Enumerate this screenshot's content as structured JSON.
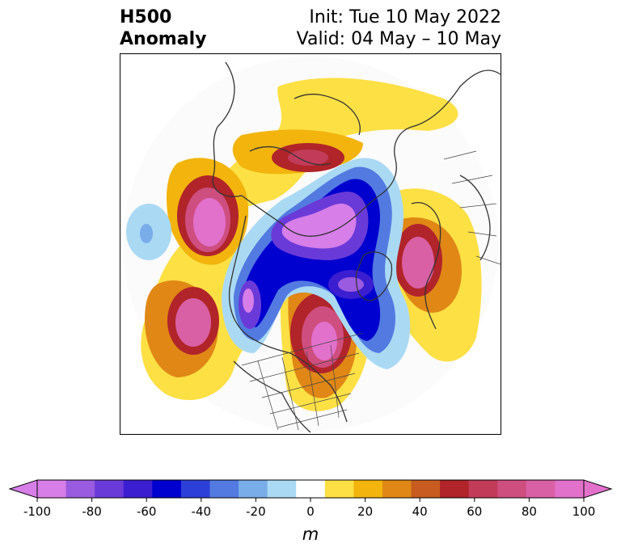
{
  "title": {
    "left_line1": "H500",
    "left_line2": "Anomaly",
    "right_line1": "Init: Tue 10 May 2022",
    "right_line2": "Valid: 04 May – 10 May"
  },
  "map": {
    "projection": "north-polar-stereographic",
    "field": "500 hPa geopotential height anomaly",
    "anomaly_centers": [
      {
        "sign": "positive",
        "region": "North Pacific / Bering Sea",
        "peak": 100
      },
      {
        "sign": "positive",
        "region": "Northeast Pacific",
        "peak": 90
      },
      {
        "sign": "positive",
        "region": "Eastern North America",
        "peak": 90
      },
      {
        "sign": "positive",
        "region": "Northern Europe / Scandinavia",
        "peak": 90
      },
      {
        "sign": "positive",
        "region": "East Siberia",
        "peak": 70
      },
      {
        "sign": "negative",
        "region": "Arctic Ocean",
        "peak": -100
      },
      {
        "sign": "negative",
        "region": "Western Canada",
        "peak": -90
      },
      {
        "sign": "negative",
        "region": "Greenland / North Atlantic",
        "peak": -100
      }
    ]
  },
  "colorbar": {
    "ticks": [
      "-100",
      "-80",
      "-60",
      "-40",
      "-20",
      "0",
      "20",
      "40",
      "60",
      "80",
      "100"
    ],
    "unit": "m",
    "levels": [
      -100,
      -90,
      -80,
      -70,
      -60,
      -50,
      -40,
      -30,
      -20,
      -10,
      10,
      20,
      30,
      40,
      50,
      60,
      70,
      80,
      90,
      100
    ],
    "colors": [
      "#d77ee9",
      "#9a5be0",
      "#6a3ad8",
      "#3b1ed0",
      "#0000cf",
      "#2c40d9",
      "#527ae0",
      "#79ade9",
      "#aad9f4",
      "#ffffff",
      "#fce044",
      "#f2b40d",
      "#e08716",
      "#c85b1f",
      "#b0242a",
      "#c23c5a",
      "#cf4e80",
      "#da60a5",
      "#e271cc"
    ],
    "over_color": "#e271cc",
    "under_color": "#d77ee9"
  }
}
